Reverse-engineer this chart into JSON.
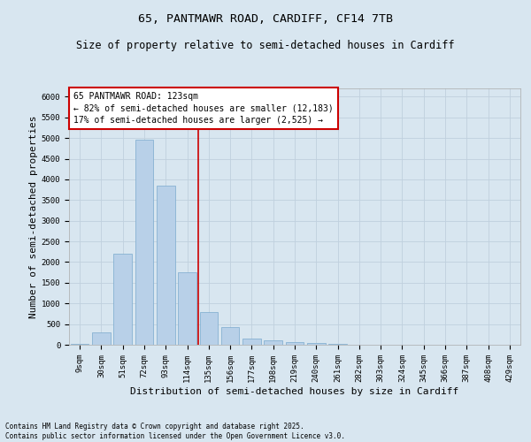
{
  "title_line1": "65, PANTMAWR ROAD, CARDIFF, CF14 7TB",
  "title_line2": "Size of property relative to semi-detached houses in Cardiff",
  "xlabel": "Distribution of semi-detached houses by size in Cardiff",
  "ylabel": "Number of semi-detached properties",
  "footnote": "Contains HM Land Registry data © Crown copyright and database right 2025.\nContains public sector information licensed under the Open Government Licence v3.0.",
  "categories": [
    "9sqm",
    "30sqm",
    "51sqm",
    "72sqm",
    "93sqm",
    "114sqm",
    "135sqm",
    "156sqm",
    "177sqm",
    "198sqm",
    "219sqm",
    "240sqm",
    "261sqm",
    "282sqm",
    "303sqm",
    "324sqm",
    "345sqm",
    "366sqm",
    "387sqm",
    "408sqm",
    "429sqm"
  ],
  "values": [
    30,
    290,
    2200,
    4950,
    3850,
    1750,
    800,
    430,
    160,
    100,
    60,
    35,
    20,
    10,
    5,
    3,
    2,
    1,
    0,
    0,
    0
  ],
  "bar_color": "#b8d0e8",
  "bar_edge_color": "#7aaace",
  "vline_color": "#cc0000",
  "vline_x": 5.5,
  "annotation_box_text": "65 PANTMAWR ROAD: 123sqm\n← 82% of semi-detached houses are smaller (12,183)\n17% of semi-detached houses are larger (2,525) →",
  "annotation_box_color": "#cc0000",
  "annotation_box_fill": "#ffffff",
  "ylim": [
    0,
    6200
  ],
  "yticks": [
    0,
    500,
    1000,
    1500,
    2000,
    2500,
    3000,
    3500,
    4000,
    4500,
    5000,
    5500,
    6000
  ],
  "grid_color": "#c0d0de",
  "bg_color": "#d8e6f0",
  "title_fontsize": 9.5,
  "subtitle_fontsize": 8.5,
  "axis_label_fontsize": 8,
  "tick_fontsize": 6.5,
  "annotation_fontsize": 7,
  "footnote_fontsize": 5.5
}
